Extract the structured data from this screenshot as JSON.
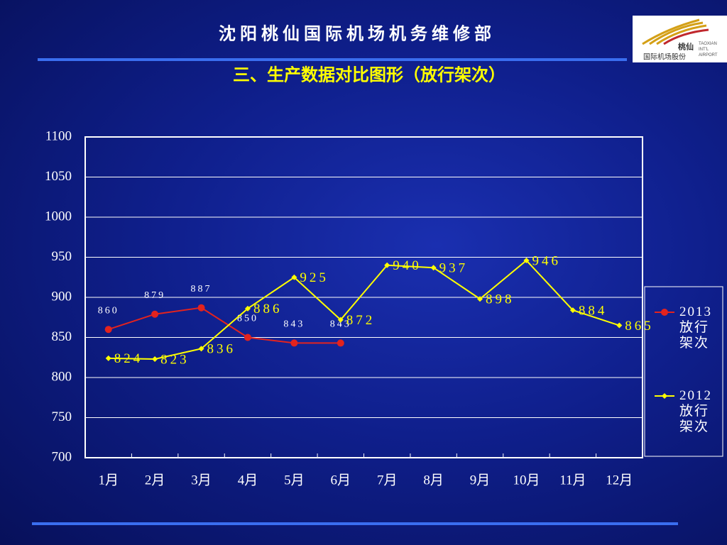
{
  "header": {
    "org": "沈 阳 桃 仙 国 际 机 场 机 务 维 修 部"
  },
  "logo": {
    "name": "桃仙",
    "company": "国际机场股份",
    "english": "TAOXIAN INT'L AIRPORT"
  },
  "chart_data": {
    "type": "line",
    "title": "三、生产数据对比图形（放行架次）",
    "categories": [
      "1月",
      "2月",
      "3月",
      "4月",
      "5月",
      "6月",
      "7月",
      "8月",
      "9月",
      "10月",
      "11月",
      "12月"
    ],
    "series": [
      {
        "name": "2013放行架次",
        "color": "#e3231e",
        "values": [
          860,
          879,
          887,
          850,
          843,
          843,
          null,
          null,
          null,
          null,
          null,
          null
        ]
      },
      {
        "name": "2012放行架次",
        "color": "#ffff00",
        "values": [
          824,
          823,
          836,
          886,
          925,
          872,
          940,
          937,
          898,
          946,
          884,
          865
        ]
      }
    ],
    "ylim": [
      700,
      1100
    ],
    "yticks": [
      700,
      750,
      800,
      850,
      900,
      950,
      1000,
      1050,
      1100
    ],
    "grid": true,
    "legend": "right"
  }
}
